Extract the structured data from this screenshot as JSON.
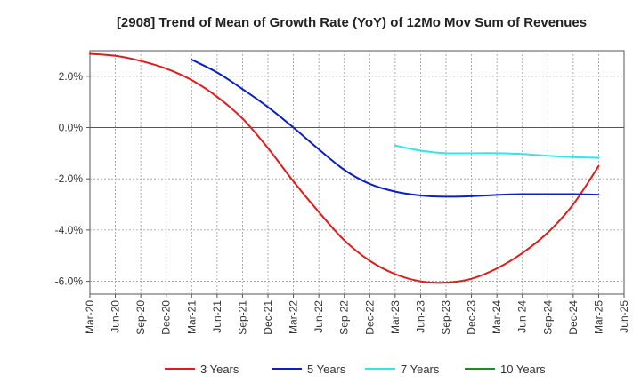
{
  "chart_data": {
    "type": "line",
    "title": "[2908]  Trend of Mean of Growth Rate (YoY) of 12Mo Mov Sum of Revenues",
    "xlabel": "",
    "ylabel": "",
    "y_unit_suffix": "%",
    "ylim": [
      -6.5,
      3.0
    ],
    "yticks": [
      2.0,
      0.0,
      -2.0,
      -4.0,
      -6.0
    ],
    "ytick_labels": [
      "2.0%",
      "0.0%",
      "-2.0%",
      "-4.0%",
      "-6.0%"
    ],
    "x_tick_labels": [
      "Mar-20",
      "Jun-20",
      "Sep-20",
      "Dec-20",
      "Mar-21",
      "Jun-21",
      "Sep-21",
      "Dec-21",
      "Mar-22",
      "Jun-22",
      "Sep-22",
      "Dec-22",
      "Mar-23",
      "Jun-23",
      "Sep-23",
      "Dec-23",
      "Mar-24",
      "Jun-24",
      "Sep-24",
      "Dec-24",
      "Mar-25",
      "Jun-25"
    ],
    "grid": true,
    "legend_position": "bottom",
    "series": [
      {
        "name": "3 Years",
        "color": "#e31a1c",
        "start_index": 0,
        "values": [
          2.88,
          2.8,
          2.6,
          2.3,
          1.85,
          1.2,
          0.35,
          -0.8,
          -2.1,
          -3.3,
          -4.4,
          -5.2,
          -5.72,
          -6.0,
          -6.05,
          -5.9,
          -5.5,
          -4.9,
          -4.1,
          -3.0,
          -1.5
        ]
      },
      {
        "name": "5 Years",
        "color": "#0a1fc4",
        "start_index": 4,
        "values": [
          2.65,
          2.15,
          1.5,
          0.8,
          0.0,
          -0.85,
          -1.65,
          -2.2,
          -2.5,
          -2.65,
          -2.7,
          -2.68,
          -2.63,
          -2.6,
          -2.6,
          -2.6,
          -2.62
        ]
      },
      {
        "name": "7 Years",
        "color": "#33e6e6",
        "start_index": 12,
        "values": [
          -0.7,
          -0.9,
          -1.0,
          -1.0,
          -1.0,
          -1.03,
          -1.1,
          -1.15,
          -1.18
        ]
      },
      {
        "name": "10 Years",
        "color": "#1e8c1e",
        "start_index": 0,
        "values": []
      }
    ]
  }
}
